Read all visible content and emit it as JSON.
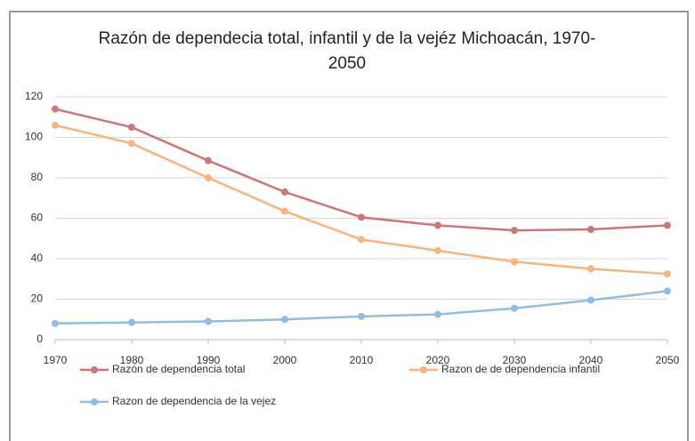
{
  "chart_data": {
    "type": "line",
    "title": "Razón de dependecia total, infantil y de la vejéz Michoacán, 1970-2050",
    "x": [
      1970,
      1980,
      1990,
      2000,
      2010,
      2020,
      2030,
      2040,
      2050
    ],
    "series": [
      {
        "name": "Razón de dependencia total",
        "color": "#c9777a",
        "values": [
          114,
          105,
          88.5,
          73,
          60.5,
          56.5,
          54,
          54.5,
          56.5
        ]
      },
      {
        "name": "Razon de de dependencia infantil",
        "color": "#f8b47c",
        "values": [
          106,
          97,
          80,
          63.5,
          49.5,
          44,
          38.5,
          35,
          32.5
        ]
      },
      {
        "name": "Razon de dependencia de la vejez",
        "color": "#8ebfe0",
        "values": [
          8,
          8.5,
          9,
          10,
          11.5,
          12.5,
          15.5,
          19.5,
          24
        ]
      }
    ],
    "xlim": [
      1970,
      2050
    ],
    "xticks": [
      1970,
      1980,
      1990,
      2000,
      2010,
      2020,
      2030,
      2040,
      2050
    ],
    "ylim": [
      0,
      120
    ],
    "yticks": [
      0,
      20,
      40,
      60,
      80,
      100,
      120
    ],
    "grid": true
  }
}
